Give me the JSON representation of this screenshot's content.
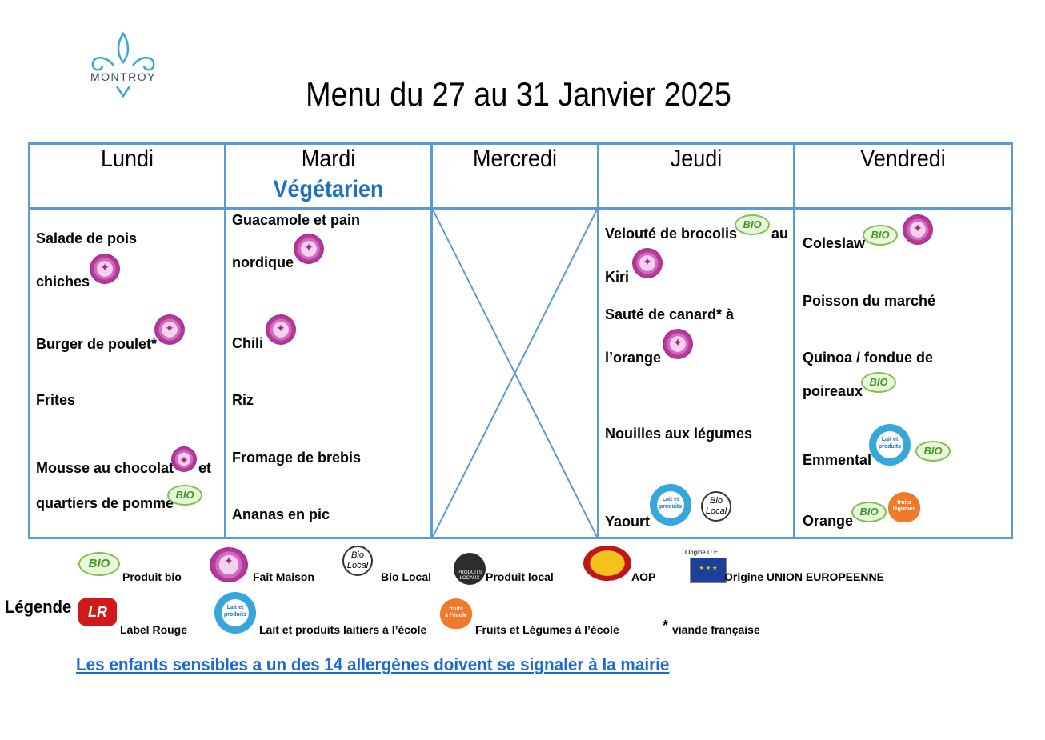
{
  "logo": {
    "text": "MONTROY"
  },
  "title": "Menu du 27 au 31 Janvier 2025",
  "days": [
    {
      "name": "Lundi",
      "subtitle": ""
    },
    {
      "name": "Mardi",
      "subtitle": "Végétarien"
    },
    {
      "name": "Mercredi",
      "subtitle": ""
    },
    {
      "name": "Jeudi",
      "subtitle": ""
    },
    {
      "name": "Vendredi",
      "subtitle": ""
    }
  ],
  "lundi": {
    "salade_1": "Salade de pois",
    "salade_2": "chiches",
    "burger": "Burger de poulet*",
    "frites": "Frites",
    "mousse_1": "Mousse au chocolat",
    "mousse_et": "et",
    "mousse_2": "quartiers de pomme"
  },
  "mardi": {
    "guac_1": "Guacamole et pain",
    "guac_2": "nordique",
    "chili": "Chili",
    "riz": "Riz",
    "fromage": "Fromage de brebis",
    "ananas": "Ananas en pic"
  },
  "jeudi": {
    "veloute_1": "Velouté de brocolis",
    "veloute_au": "au",
    "veloute_2": "Kiri",
    "saute_1": "Sauté de canard* à",
    "saute_2": "l’orange",
    "nouilles": "Nouilles aux légumes",
    "yaourt": "Yaourt"
  },
  "vendredi": {
    "coleslaw": "Coleslaw",
    "poisson": "Poisson du marché",
    "quinoa_1": "Quinoa / fondue de",
    "quinoa_2": "poireaux",
    "emmental": "Emmental",
    "orange": "Orange"
  },
  "badges": {
    "bio": "BIO",
    "bio_local_1": "Bio",
    "bio_local_2": "Local",
    "lait_1": "Lait et",
    "lait_2": "produits",
    "lait_3": "laitiers",
    "lait_4": "à l’école",
    "fruits_1": "fruits",
    "fruits_2": "légumes",
    "fruits_3": "à l’école",
    "local_1": "PRODUITS",
    "local_2": "LOCAUX",
    "ue_caption": "Origine U.E.",
    "label_rouge": "LR"
  },
  "legend": {
    "title": "Légende",
    "produit_bio": "Produit bio",
    "fait_maison": "Fait Maison",
    "bio_local": "Bio Local",
    "produit_local": "Produit local",
    "aop": "AOP",
    "origine_ue": "Origine UNION EUROPEENNE",
    "label_rouge": "Label Rouge",
    "lait_ecole": "Lait et produits laitiers à l’école",
    "fruits_ecole": "Fruits et Légumes à l’école",
    "asterisk": "*",
    "viande": "viande française"
  },
  "allergy_notice": "Les enfants sensibles a un des 14 allergènes doivent se signaler à la mairie",
  "colors": {
    "grid": "#5b9bd5",
    "vegetarien": "#1f6fbf",
    "link": "#1a6ad6"
  }
}
